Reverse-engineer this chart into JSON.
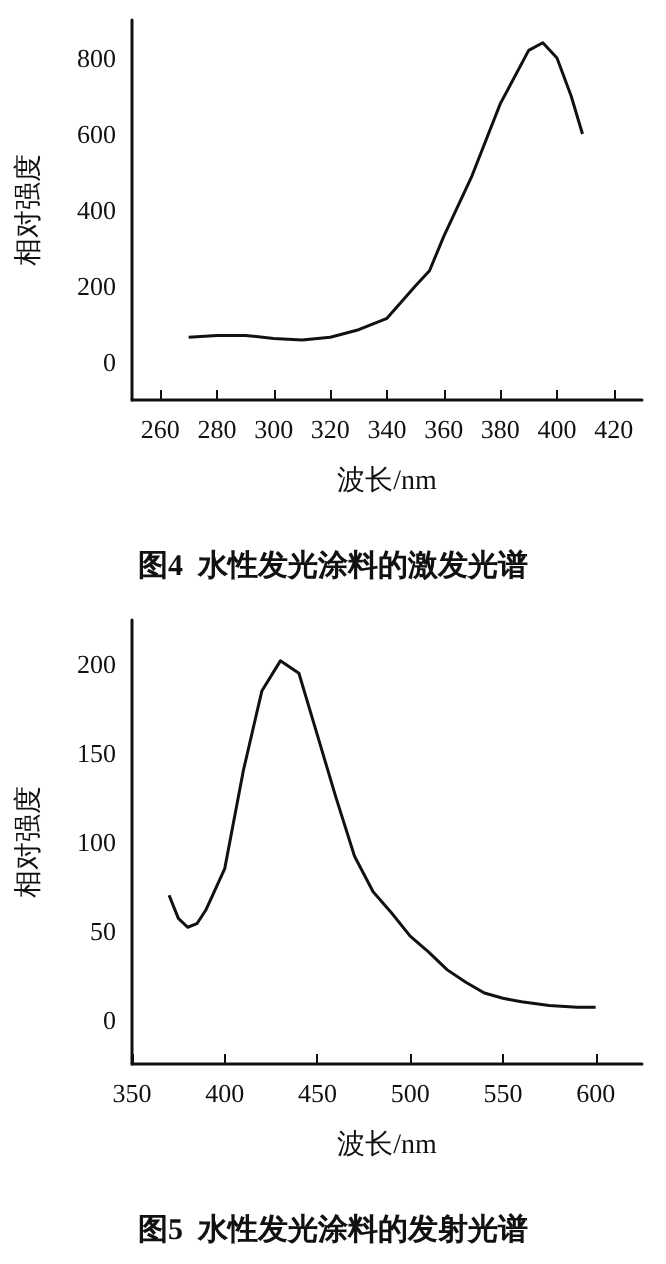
{
  "chart_data": [
    {
      "type": "line",
      "title": "图4  水性发光涂料的激发光谱",
      "xlabel": "波长/nm",
      "ylabel": "相对强度",
      "xlim": [
        250,
        430
      ],
      "xticks": [
        260,
        280,
        300,
        320,
        340,
        360,
        380,
        400,
        420
      ],
      "ylim": [
        -100,
        900
      ],
      "yticks": [
        0,
        200,
        400,
        600,
        800
      ],
      "grid": false,
      "marker": "none",
      "line_style": "solid",
      "series": [
        {
          "color": "#111111",
          "x": [
            270,
            280,
            290,
            300,
            310,
            320,
            330,
            340,
            350,
            355,
            360,
            370,
            380,
            390,
            395,
            400,
            405,
            409
          ],
          "values": [
            65,
            70,
            70,
            62,
            58,
            65,
            85,
            115,
            200,
            240,
            330,
            490,
            680,
            820,
            840,
            800,
            700,
            600
          ]
        }
      ]
    },
    {
      "type": "line",
      "title": "图5  水性发光涂料的发射光谱",
      "xlabel": "波长/nm",
      "ylabel": "相对强度",
      "xlim": [
        350,
        625
      ],
      "xticks": [
        350,
        400,
        450,
        500,
        550,
        600
      ],
      "ylim": [
        -25,
        225
      ],
      "yticks": [
        0,
        50,
        100,
        150,
        200
      ],
      "grid": false,
      "marker": "none",
      "line_style": "solid",
      "series": [
        {
          "color": "#111111",
          "x": [
            370,
            375,
            380,
            385,
            390,
            400,
            410,
            420,
            430,
            440,
            450,
            460,
            470,
            480,
            490,
            500,
            510,
            520,
            530,
            540,
            550,
            560,
            575,
            590,
            600
          ],
          "values": [
            70,
            57,
            52,
            54,
            62,
            85,
            140,
            185,
            202,
            195,
            160,
            125,
            92,
            72,
            60,
            47,
            38,
            28,
            21,
            15,
            12,
            10,
            8,
            7,
            7
          ]
        }
      ]
    }
  ]
}
